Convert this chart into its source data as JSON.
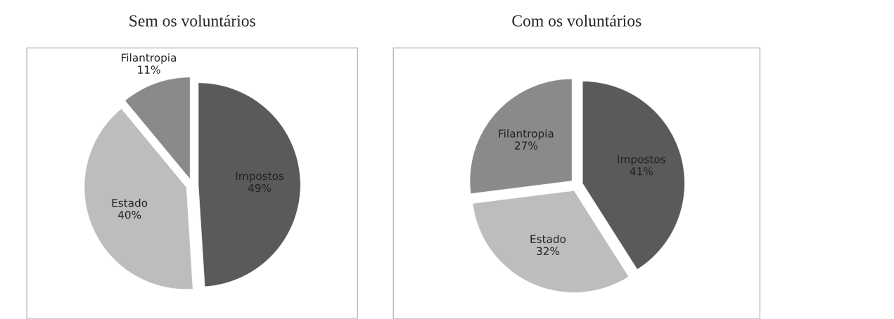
{
  "chart_data": [
    {
      "type": "pie",
      "title": "Sem os voluntários",
      "categories": [
        "Impostos",
        "Estado",
        "Filantropia"
      ],
      "values": [
        49,
        40,
        11
      ],
      "value_labels": [
        "49%",
        "40%",
        "11%"
      ],
      "colors": [
        "#5a5a5a",
        "#bdbdbd",
        "#8a8a8a"
      ]
    },
    {
      "type": "pie",
      "title": "Com os voluntários",
      "categories": [
        "Impostos",
        "Estado",
        "Filantropia"
      ],
      "values": [
        41,
        32,
        27
      ],
      "value_labels": [
        "41%",
        "32%",
        "27%"
      ],
      "colors": [
        "#5a5a5a",
        "#bdbdbd",
        "#8a8a8a"
      ]
    }
  ]
}
